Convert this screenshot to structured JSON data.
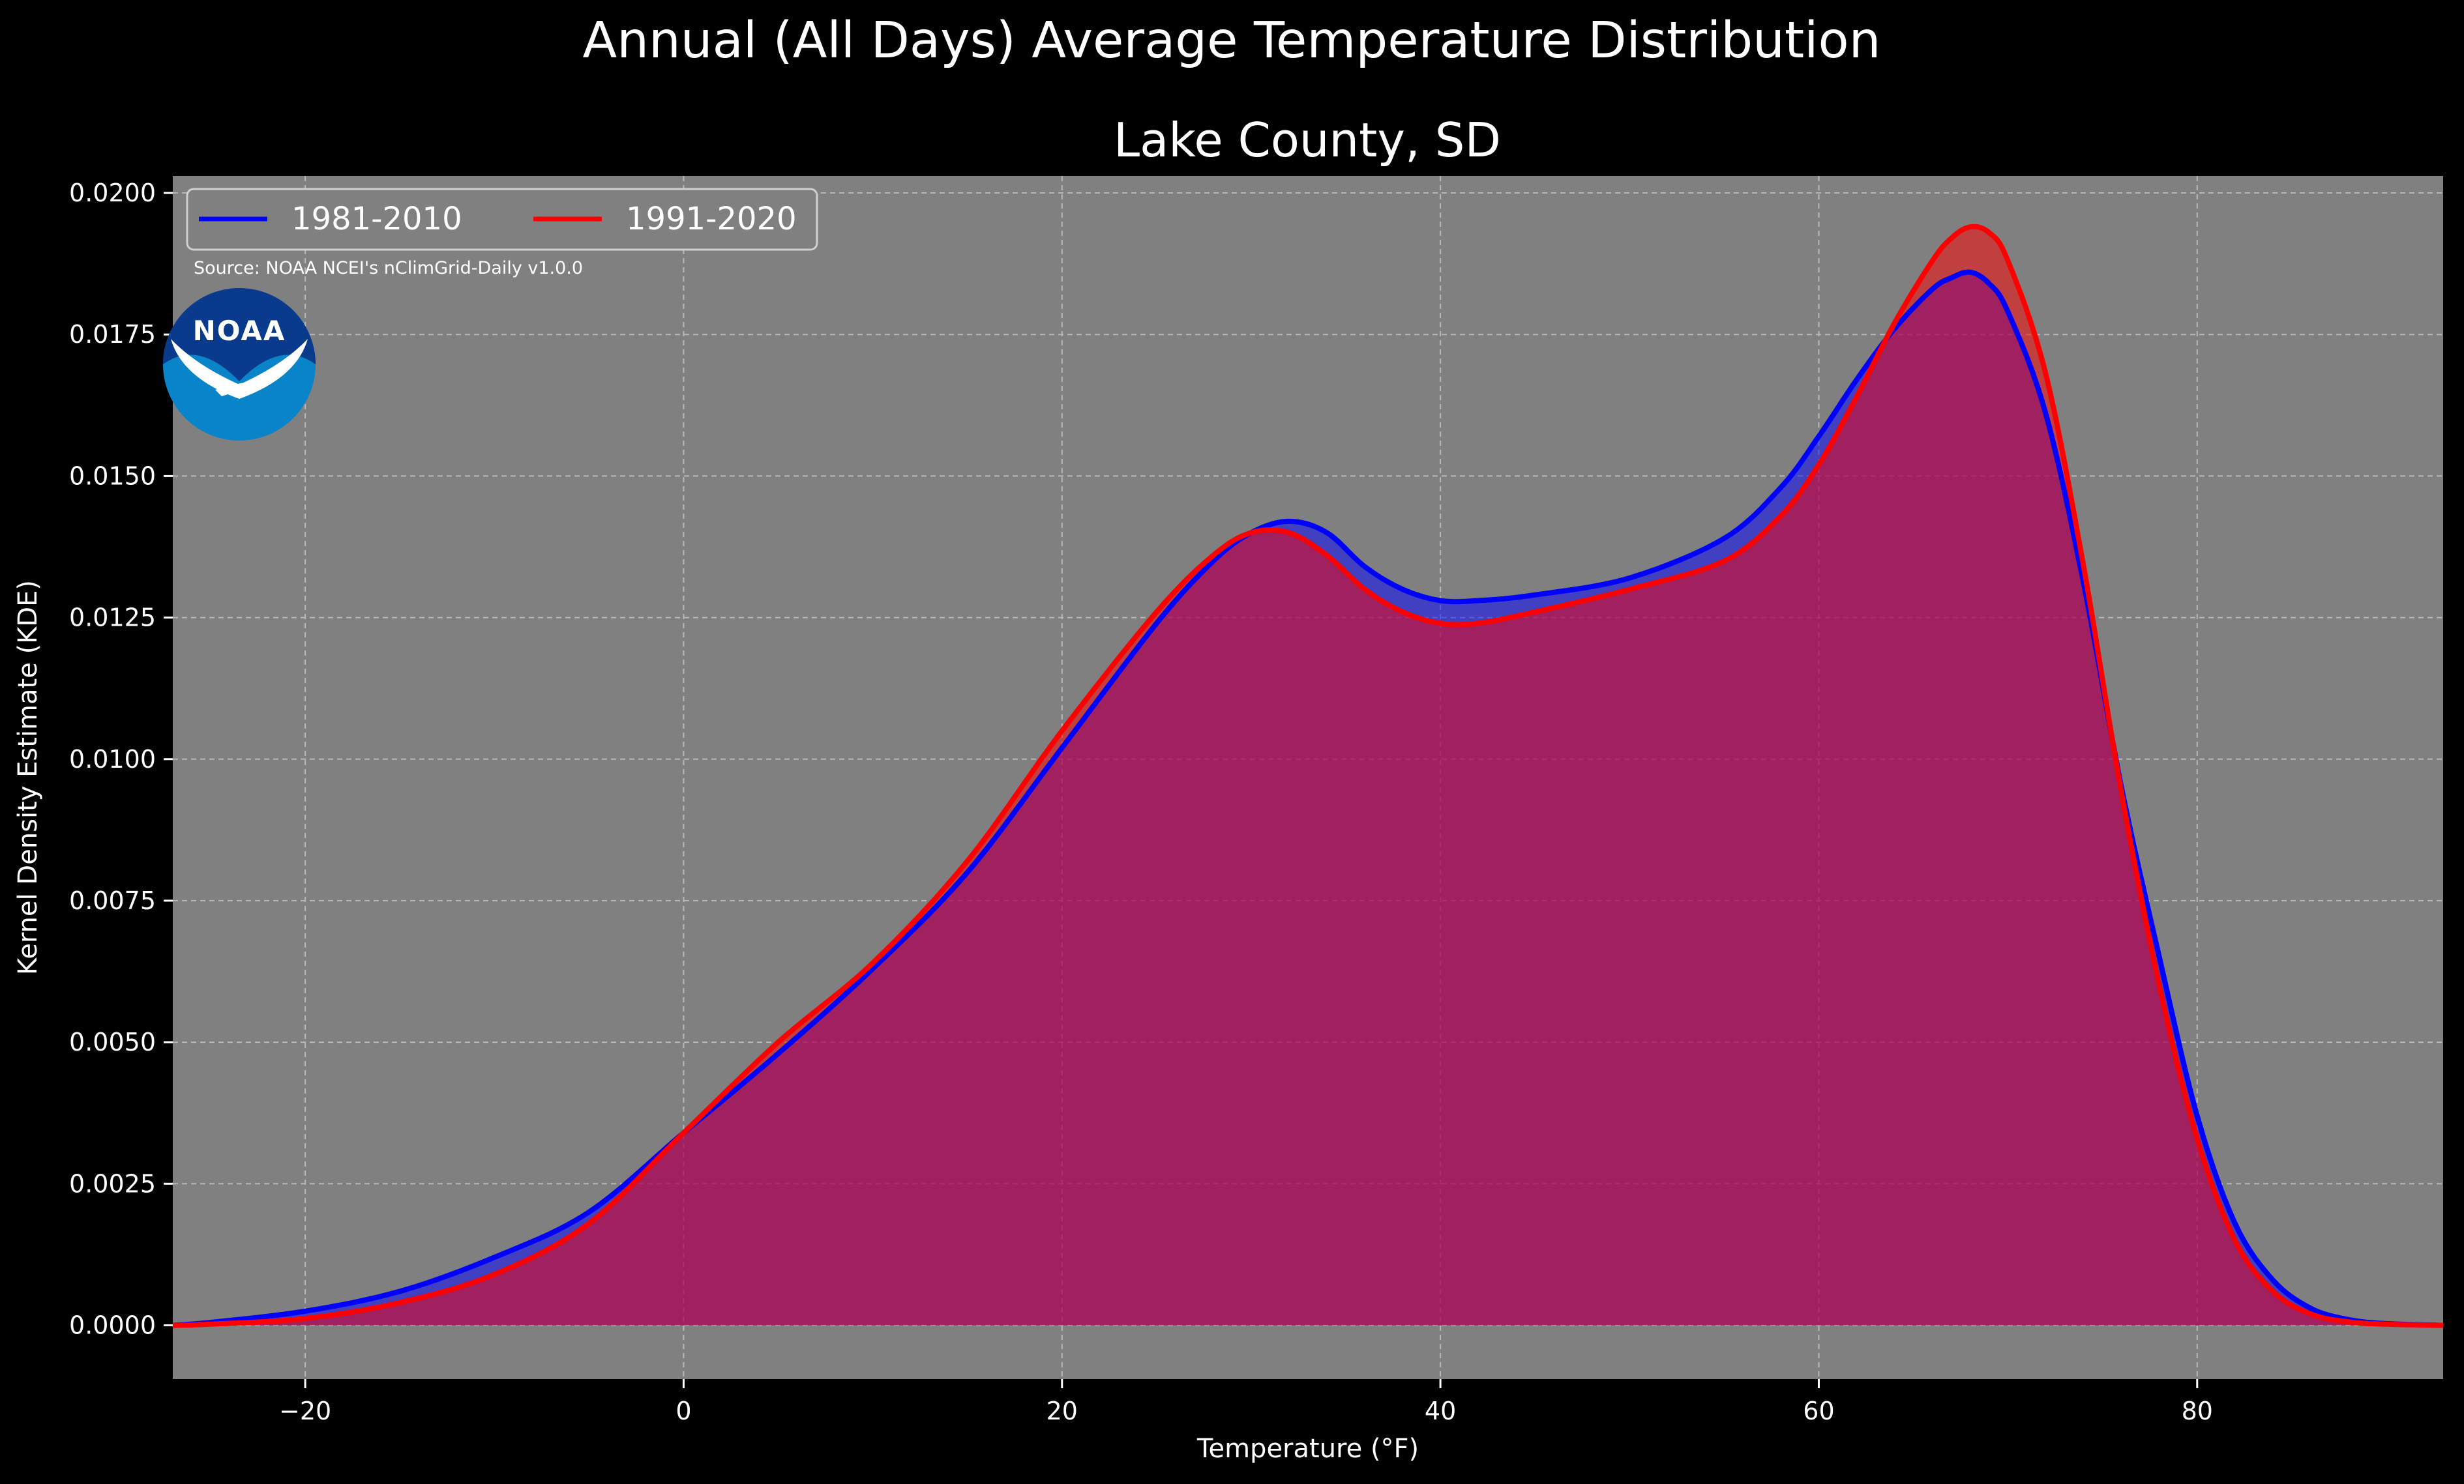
{
  "chart_data": {
    "type": "area",
    "suptitle": "Annual (All Days) Average Temperature Distribution",
    "title": "Lake County, SD",
    "xlabel": "Temperature (°F)",
    "ylabel": "Kernel Density Estimate (KDE)",
    "xlim": [
      -27,
      93
    ],
    "ylim": [
      -0.00095,
      0.0203
    ],
    "xticks": [
      -20,
      0,
      20,
      40,
      60,
      80
    ],
    "xtick_labels": [
      "−20",
      "0",
      "20",
      "40",
      "60",
      "80"
    ],
    "yticks": [
      0,
      0.0025,
      0.005,
      0.0075,
      0.01,
      0.0125,
      0.015,
      0.0175,
      0.02
    ],
    "ytick_labels": [
      "0.0000",
      "0.0025",
      "0.0050",
      "0.0075",
      "0.0100",
      "0.0125",
      "0.0150",
      "0.0175",
      "0.0200"
    ],
    "grid": true,
    "legend_position": "top-left",
    "annotation": "Source: NOAA NCEI's nClimGrid-Daily v1.0.0",
    "logo_text": "NOAA",
    "colors": {
      "figure_bg": "#000000",
      "axes_bg": "#808080",
      "grid": "#b8b8b8",
      "logo_dark": "#0a3a8c",
      "logo_light": "#0a84c9"
    },
    "series": [
      {
        "name": "1981-2010",
        "color": "#0000ff",
        "fill": "rgba(0,0,255,0.5)",
        "x": [
          -27,
          -25,
          -20,
          -15,
          -10,
          -5,
          0,
          5,
          10,
          15,
          20,
          25,
          28,
          30,
          32,
          34,
          36,
          38,
          40,
          42,
          45,
          50,
          55,
          58,
          60,
          62,
          64,
          66,
          67,
          68,
          69,
          70,
          72,
          74,
          76,
          78,
          80,
          82,
          84,
          86,
          88,
          90,
          93
        ],
        "y": [
          0,
          5e-05,
          0.00025,
          0.0006,
          0.0012,
          0.002,
          0.0034,
          0.0048,
          0.0063,
          0.008,
          0.0102,
          0.0124,
          0.0135,
          0.014,
          0.0142,
          0.014,
          0.0134,
          0.013,
          0.0128,
          0.0128,
          0.0129,
          0.0132,
          0.0139,
          0.0148,
          0.0157,
          0.0167,
          0.0176,
          0.0183,
          0.0185,
          0.0186,
          0.0184,
          0.0179,
          0.0161,
          0.0131,
          0.0095,
          0.0065,
          0.0037,
          0.0018,
          0.0008,
          0.0003,
          0.0001,
          3e-05,
          0
        ]
      },
      {
        "name": "1991-2020",
        "color": "#ff0000",
        "fill": "rgba(255,0,0,0.5)",
        "x": [
          -27,
          -25,
          -20,
          -15,
          -10,
          -5,
          0,
          5,
          10,
          15,
          20,
          25,
          28,
          30,
          32,
          34,
          36,
          38,
          40,
          42,
          45,
          50,
          55,
          58,
          60,
          62,
          64,
          66,
          67,
          68,
          69,
          70,
          72,
          74,
          76,
          78,
          80,
          82,
          84,
          86,
          88,
          90,
          93
        ],
        "y": [
          0,
          2e-05,
          0.00012,
          0.0004,
          0.0009,
          0.0018,
          0.0034,
          0.005,
          0.0064,
          0.0082,
          0.0105,
          0.0126,
          0.0136,
          0.014,
          0.014,
          0.0136,
          0.013,
          0.0126,
          0.0124,
          0.0124,
          0.0126,
          0.013,
          0.0135,
          0.0143,
          0.0152,
          0.0164,
          0.0177,
          0.0188,
          0.0192,
          0.0194,
          0.0193,
          0.0188,
          0.0168,
          0.0134,
          0.0094,
          0.006,
          0.0033,
          0.0015,
          0.0006,
          0.0002,
          6e-05,
          2e-05,
          0
        ]
      }
    ]
  }
}
